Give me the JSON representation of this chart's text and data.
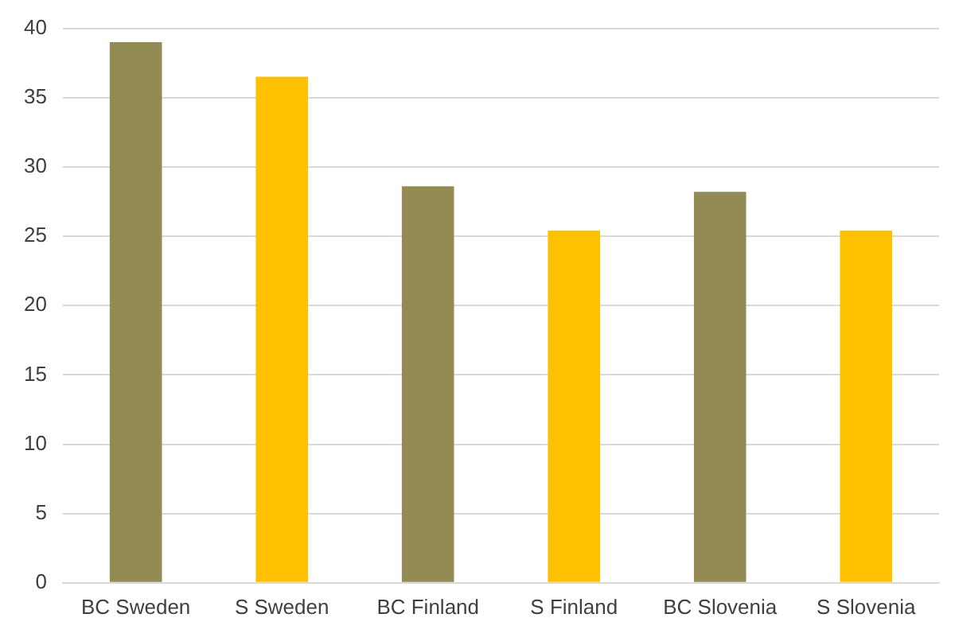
{
  "chart_data": {
    "type": "bar",
    "categories": [
      "BC Sweden",
      "S Sweden",
      "BC Finland",
      "S Finland",
      "BC Slovenia",
      "S Slovenia"
    ],
    "values": [
      39.0,
      36.5,
      28.6,
      25.4,
      28.2,
      25.4
    ],
    "colors": [
      "#948a54",
      "#ffc000",
      "#948a54",
      "#ffc000",
      "#948a54",
      "#ffc000"
    ],
    "ylim": [
      0,
      40
    ],
    "yticks": [
      0,
      5,
      10,
      15,
      20,
      25,
      30,
      35,
      40
    ],
    "grid": "y",
    "legend": false
  }
}
